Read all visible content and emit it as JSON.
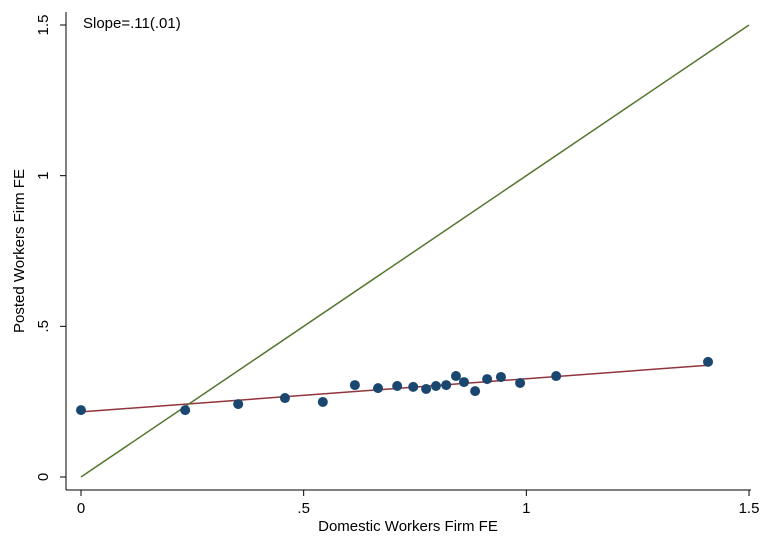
{
  "chart_data": {
    "type": "scatter",
    "xlabel": "Domestic Workers Firm FE",
    "ylabel": "Posted Workers Firm FE",
    "annotation": "Slope=.11(.01)",
    "xlim": [
      0,
      1.5
    ],
    "ylim": [
      0,
      1.5
    ],
    "xticks": [
      0,
      {
        "value": 0.5,
        "label": ".5"
      },
      1,
      1.5
    ],
    "yticks": [
      0,
      {
        "value": 0.5,
        "label": ".5"
      },
      1,
      1.5
    ],
    "series": [
      {
        "mode": "markers",
        "color": "#1a476f",
        "x": [
          0,
          0.234,
          0.353,
          0.458,
          0.543,
          0.615,
          0.667,
          0.71,
          0.746,
          0.775,
          0.797,
          0.82,
          0.842,
          0.86,
          0.885,
          0.912,
          0.943,
          0.986,
          1.067,
          1.408
        ],
        "values": [
          0.222,
          0.222,
          0.242,
          0.262,
          0.249,
          0.305,
          0.295,
          0.302,
          0.299,
          0.292,
          0.302,
          0.305,
          0.335,
          0.315,
          0.285,
          0.325,
          0.332,
          0.312,
          0.335,
          0.382
        ]
      },
      {
        "mode": "line",
        "color": "#90353b",
        "x": [
          0,
          1.408
        ],
        "values": [
          0.216,
          0.371
        ]
      },
      {
        "mode": "line",
        "color": "#55752f",
        "x": [
          0,
          1.5
        ],
        "values": [
          0,
          1.5
        ]
      }
    ]
  }
}
